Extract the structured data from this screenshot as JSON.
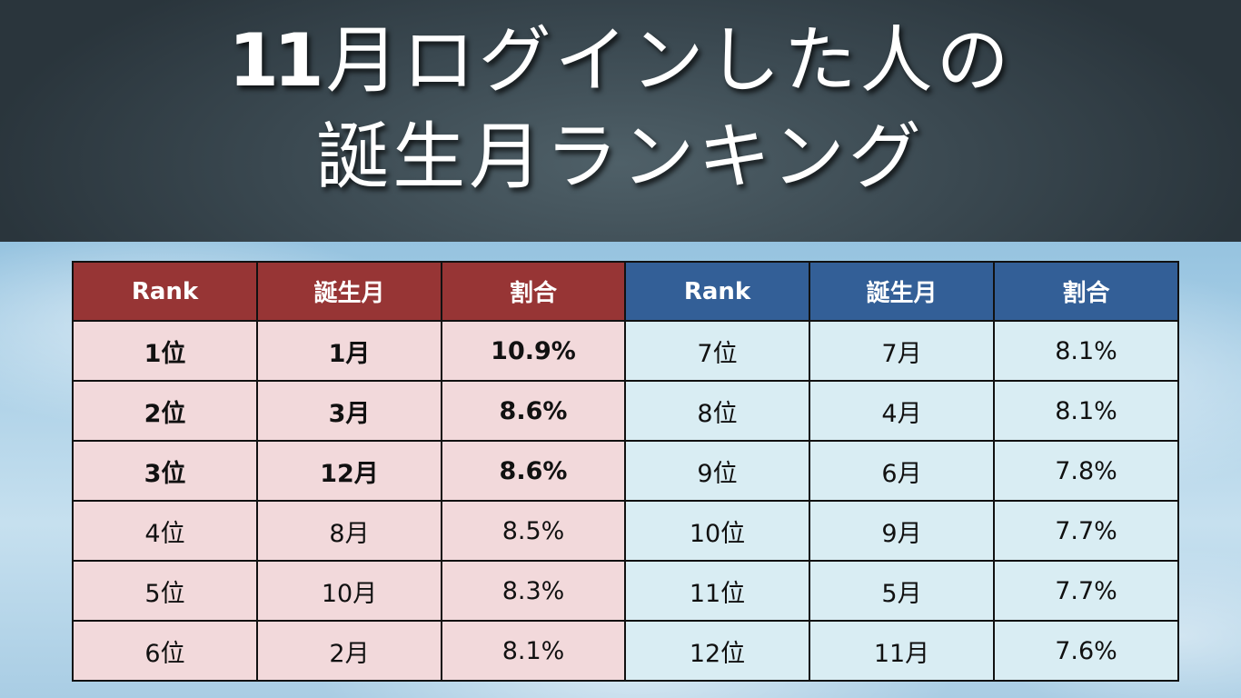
{
  "title": {
    "line1_num": "11",
    "line1_rest": "月ログインした人の",
    "line2": "誕生月ランキング"
  },
  "table": {
    "headers": [
      "Rank",
      "誕生月",
      "割合",
      "Rank",
      "誕生月",
      "割合"
    ],
    "left_rows": [
      {
        "rank": "1位",
        "month": "1月",
        "ratio": "10.9%"
      },
      {
        "rank": "2位",
        "month": "3月",
        "ratio": "8.6%"
      },
      {
        "rank": "3位",
        "month": "12月",
        "ratio": "8.6%"
      },
      {
        "rank": "4位",
        "month": "8月",
        "ratio": "8.5%"
      },
      {
        "rank": "5位",
        "month": "10月",
        "ratio": "8.3%"
      },
      {
        "rank": "6位",
        "month": "2月",
        "ratio": "8.1%"
      }
    ],
    "right_rows": [
      {
        "rank": "7位",
        "month": "7月",
        "ratio": "8.1%"
      },
      {
        "rank": "8位",
        "month": "4月",
        "ratio": "8.1%"
      },
      {
        "rank": "9位",
        "month": "6月",
        "ratio": "7.8%"
      },
      {
        "rank": "10位",
        "month": "9月",
        "ratio": "7.7%"
      },
      {
        "rank": "11位",
        "month": "5月",
        "ratio": "7.7%"
      },
      {
        "rank": "12位",
        "month": "11月",
        "ratio": "7.6%"
      }
    ]
  },
  "colors": {
    "left_header": "#973535",
    "right_header": "#335f97",
    "left_cell": "#f2d9db",
    "right_cell": "#d9edf3",
    "highlight_text": "#e00000"
  }
}
